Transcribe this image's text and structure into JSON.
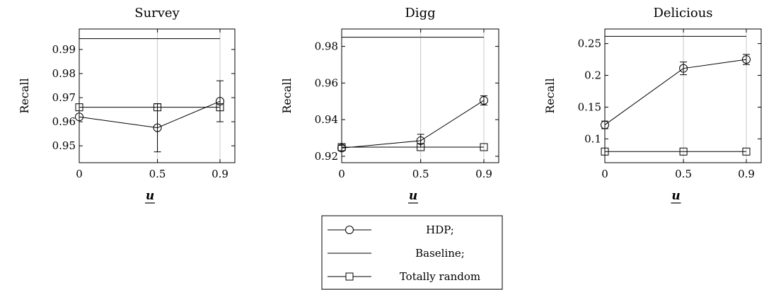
{
  "chart_data": [
    {
      "type": "line",
      "title": "Survey",
      "xlabel": "u",
      "ylabel": "Recall",
      "x": [
        0,
        0.5,
        0.9
      ],
      "x_tick_labels": [
        "0",
        "0.5",
        "0.9"
      ],
      "ylim": [
        0.943,
        0.9985
      ],
      "y_ticks": [
        0.95,
        0.96,
        0.97,
        0.98,
        0.99
      ],
      "y_tick_labels": [
        "0.95",
        "0.96",
        "0.97",
        "0.98",
        "0.99"
      ],
      "grid": "vertical",
      "series": [
        {
          "name": "HDP;",
          "marker": "circle",
          "values": [
            0.962,
            0.9575,
            0.9685
          ],
          "error": [
            null,
            0.01,
            0.0085
          ]
        },
        {
          "name": "Baseline;",
          "marker": "none",
          "values": [
            0.9945,
            0.9945,
            0.9945
          ]
        },
        {
          "name": "Totally random",
          "marker": "square",
          "values": [
            0.966,
            0.966,
            0.966
          ]
        }
      ]
    },
    {
      "type": "line",
      "title": "Digg",
      "xlabel": "u",
      "ylabel": "Recall",
      "x": [
        0,
        0.5,
        0.9
      ],
      "x_tick_labels": [
        "0",
        "0.5",
        "0.9"
      ],
      "ylim": [
        0.9165,
        0.9895
      ],
      "y_ticks": [
        0.92,
        0.94,
        0.96,
        0.98
      ],
      "y_tick_labels": [
        "0.92",
        "0.94",
        "0.96",
        "0.98"
      ],
      "grid": "vertical",
      "series": [
        {
          "name": "HDP;",
          "marker": "circle",
          "values": [
            0.9245,
            0.9285,
            0.9505
          ],
          "error": [
            0.0015,
            0.0035,
            0.0025
          ]
        },
        {
          "name": "Baseline;",
          "marker": "none",
          "values": [
            0.985,
            0.985,
            0.985
          ]
        },
        {
          "name": "Totally random",
          "marker": "square",
          "values": [
            0.925,
            0.925,
            0.925
          ]
        }
      ]
    },
    {
      "type": "line",
      "title": "Delicious",
      "xlabel": "u",
      "ylabel": "Recall",
      "x": [
        0,
        0.5,
        0.9
      ],
      "x_tick_labels": [
        "0",
        "0.5",
        "0.9"
      ],
      "ylim": [
        0.0625,
        0.273
      ],
      "y_ticks": [
        0.1,
        0.15,
        0.2,
        0.25
      ],
      "y_tick_labels": [
        "0.1",
        "0.15",
        "0.2",
        "0.25"
      ],
      "grid": "vertical",
      "series": [
        {
          "name": "HDP;",
          "marker": "circle",
          "values": [
            0.122,
            0.211,
            0.225
          ],
          "error": [
            0.006,
            0.01,
            0.008
          ]
        },
        {
          "name": "Baseline;",
          "marker": "none",
          "values": [
            0.2615,
            0.2615,
            0.2615
          ]
        },
        {
          "name": "Totally random",
          "marker": "square",
          "values": [
            0.08,
            0.08,
            0.08
          ]
        }
      ]
    }
  ],
  "legend": {
    "placement": "bottom-center",
    "entries": [
      {
        "label": "HDP;",
        "marker": "circle"
      },
      {
        "label": "Baseline;",
        "marker": "none"
      },
      {
        "label": "Totally random",
        "marker": "square"
      }
    ]
  }
}
